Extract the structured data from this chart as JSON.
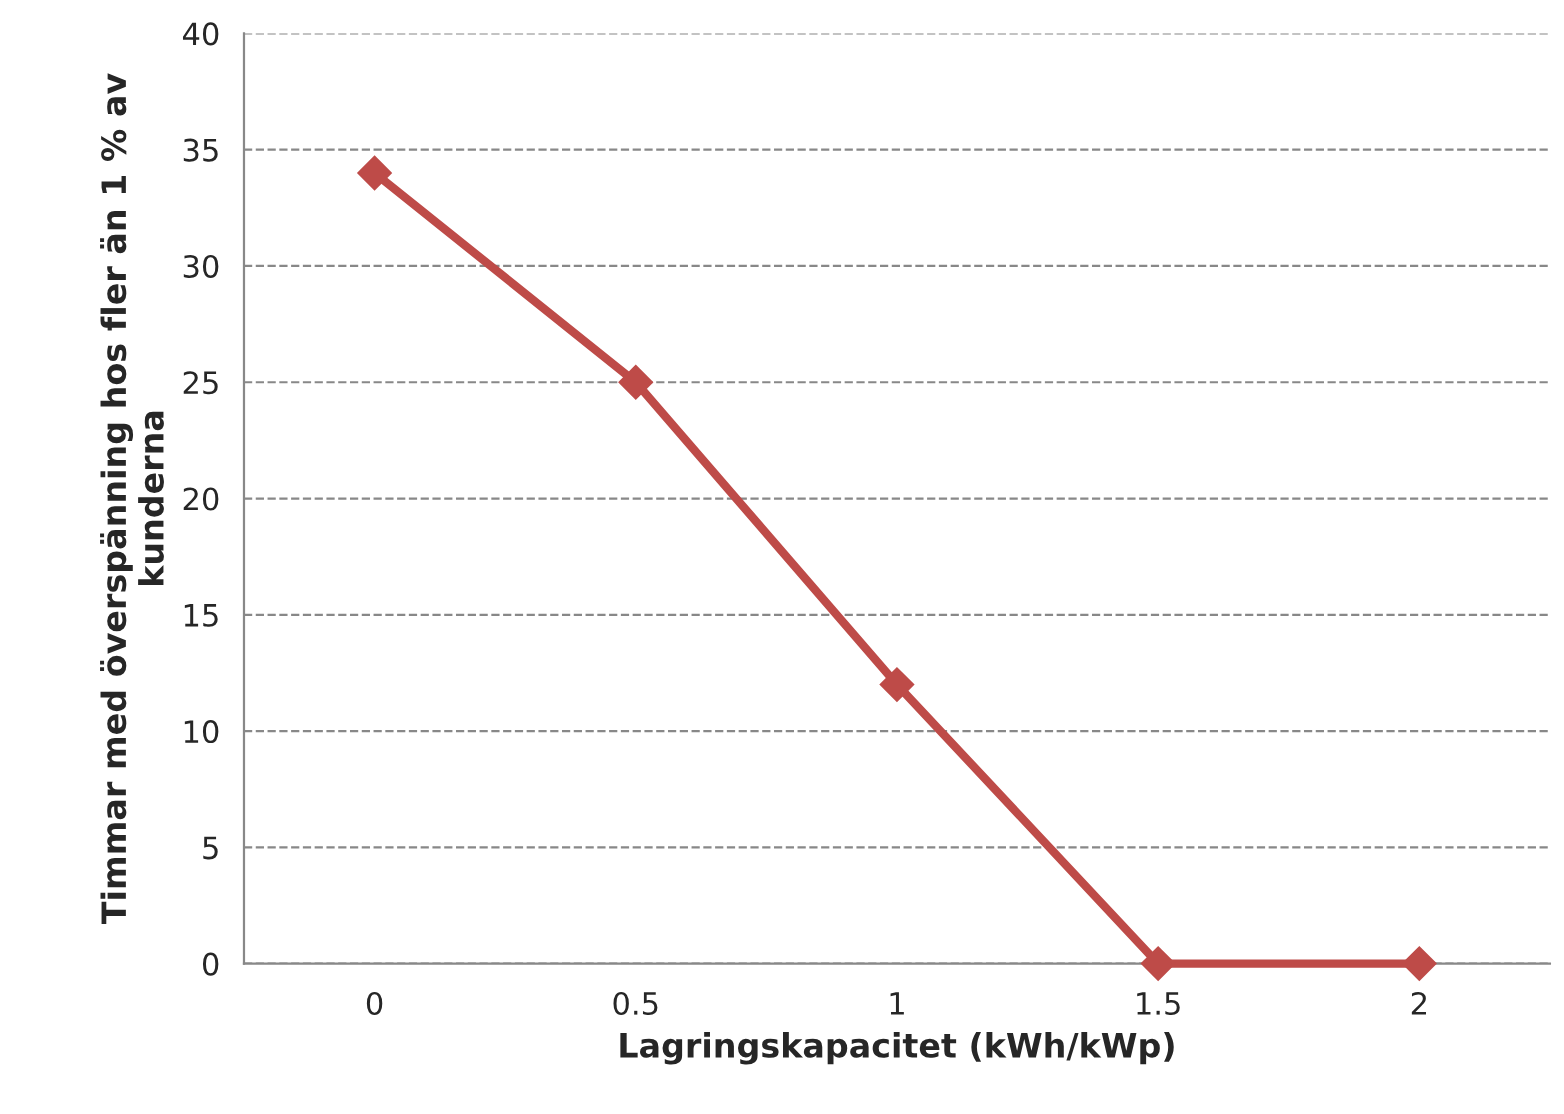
{
  "chart_data": {
    "type": "line",
    "xlabel": "Lagringskapacitet (kWh/kWp)",
    "ylabel": "Timmar med överspänning hos fler än 1 % av\nkunderna",
    "categories": [
      "0",
      "0.5",
      "1",
      "1.5",
      "2"
    ],
    "series": [
      {
        "color": "#be4b48",
        "values": [
          34,
          25,
          12,
          0,
          0
        ]
      }
    ],
    "ylim": [
      0,
      40
    ],
    "yticks": [
      0,
      5,
      10,
      15,
      20,
      25,
      30,
      35,
      40
    ],
    "grid": "y",
    "marker": "diamond",
    "line_style": "solid"
  }
}
